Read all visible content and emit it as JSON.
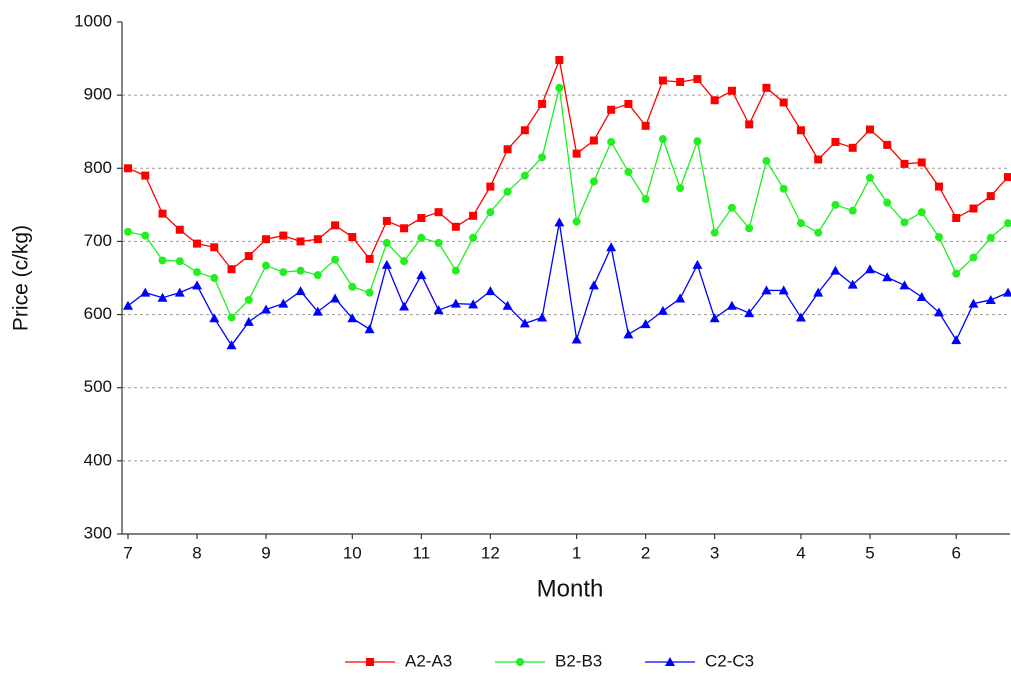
{
  "chart_data": {
    "type": "line",
    "x_label": "Month",
    "y_label": "Price (c/kg)",
    "categories": [
      "7",
      null,
      null,
      null,
      "8",
      null,
      null,
      null,
      "9",
      null,
      null,
      null,
      null,
      "10",
      null,
      null,
      null,
      "11",
      null,
      null,
      null,
      "12",
      null,
      null,
      null,
      null,
      "1",
      null,
      null,
      null,
      "2",
      null,
      null,
      null,
      "3",
      null,
      null,
      null,
      null,
      "4",
      null,
      null,
      null,
      "5",
      null,
      null,
      null,
      null,
      "6",
      null,
      null,
      null
    ],
    "series": [
      {
        "name": "A2-A3",
        "color": "#ff0000",
        "marker": "square",
        "values": [
          800,
          790,
          738,
          716,
          697,
          692,
          662,
          680,
          703,
          708,
          700,
          703,
          722,
          706,
          676,
          728,
          718,
          732,
          740,
          720,
          735,
          775,
          826,
          852,
          888,
          948,
          820,
          838,
          880,
          888,
          858,
          920,
          918,
          922,
          893,
          906,
          860,
          910,
          890,
          852,
          812,
          836,
          828,
          853,
          832,
          806,
          808,
          775,
          732,
          745,
          762,
          788
        ]
      },
      {
        "name": "B2-B3",
        "color": "#22ee22",
        "marker": "circle",
        "values": [
          713,
          708,
          674,
          673,
          658,
          650,
          596,
          620,
          667,
          658,
          660,
          654,
          675,
          638,
          630,
          698,
          673,
          705,
          698,
          660,
          705,
          740,
          768,
          790,
          815,
          910,
          727,
          782,
          836,
          795,
          758,
          840,
          773,
          837,
          712,
          746,
          718,
          810,
          772,
          725,
          712,
          750,
          742,
          787,
          753,
          726,
          740,
          706,
          656,
          678,
          705,
          725
        ]
      },
      {
        "name": "C2-C3",
        "color": "#0000ff",
        "marker": "triangle",
        "values": [
          612,
          630,
          623,
          630,
          640,
          595,
          558,
          590,
          607,
          615,
          632,
          604,
          622,
          595,
          580,
          668,
          611,
          654,
          606,
          615,
          614,
          632,
          612,
          588,
          596,
          726,
          566,
          640,
          692,
          573,
          587,
          605,
          622,
          668,
          595,
          612,
          602,
          633,
          633,
          596,
          630,
          660,
          641,
          662,
          651,
          640,
          624,
          603,
          565,
          615,
          620,
          630
        ]
      }
    ],
    "ylim": [
      300,
      1000
    ],
    "yticks": [
      300,
      400,
      500,
      600,
      700,
      800,
      900,
      1000
    ],
    "grid": true,
    "legend": "bottom"
  }
}
